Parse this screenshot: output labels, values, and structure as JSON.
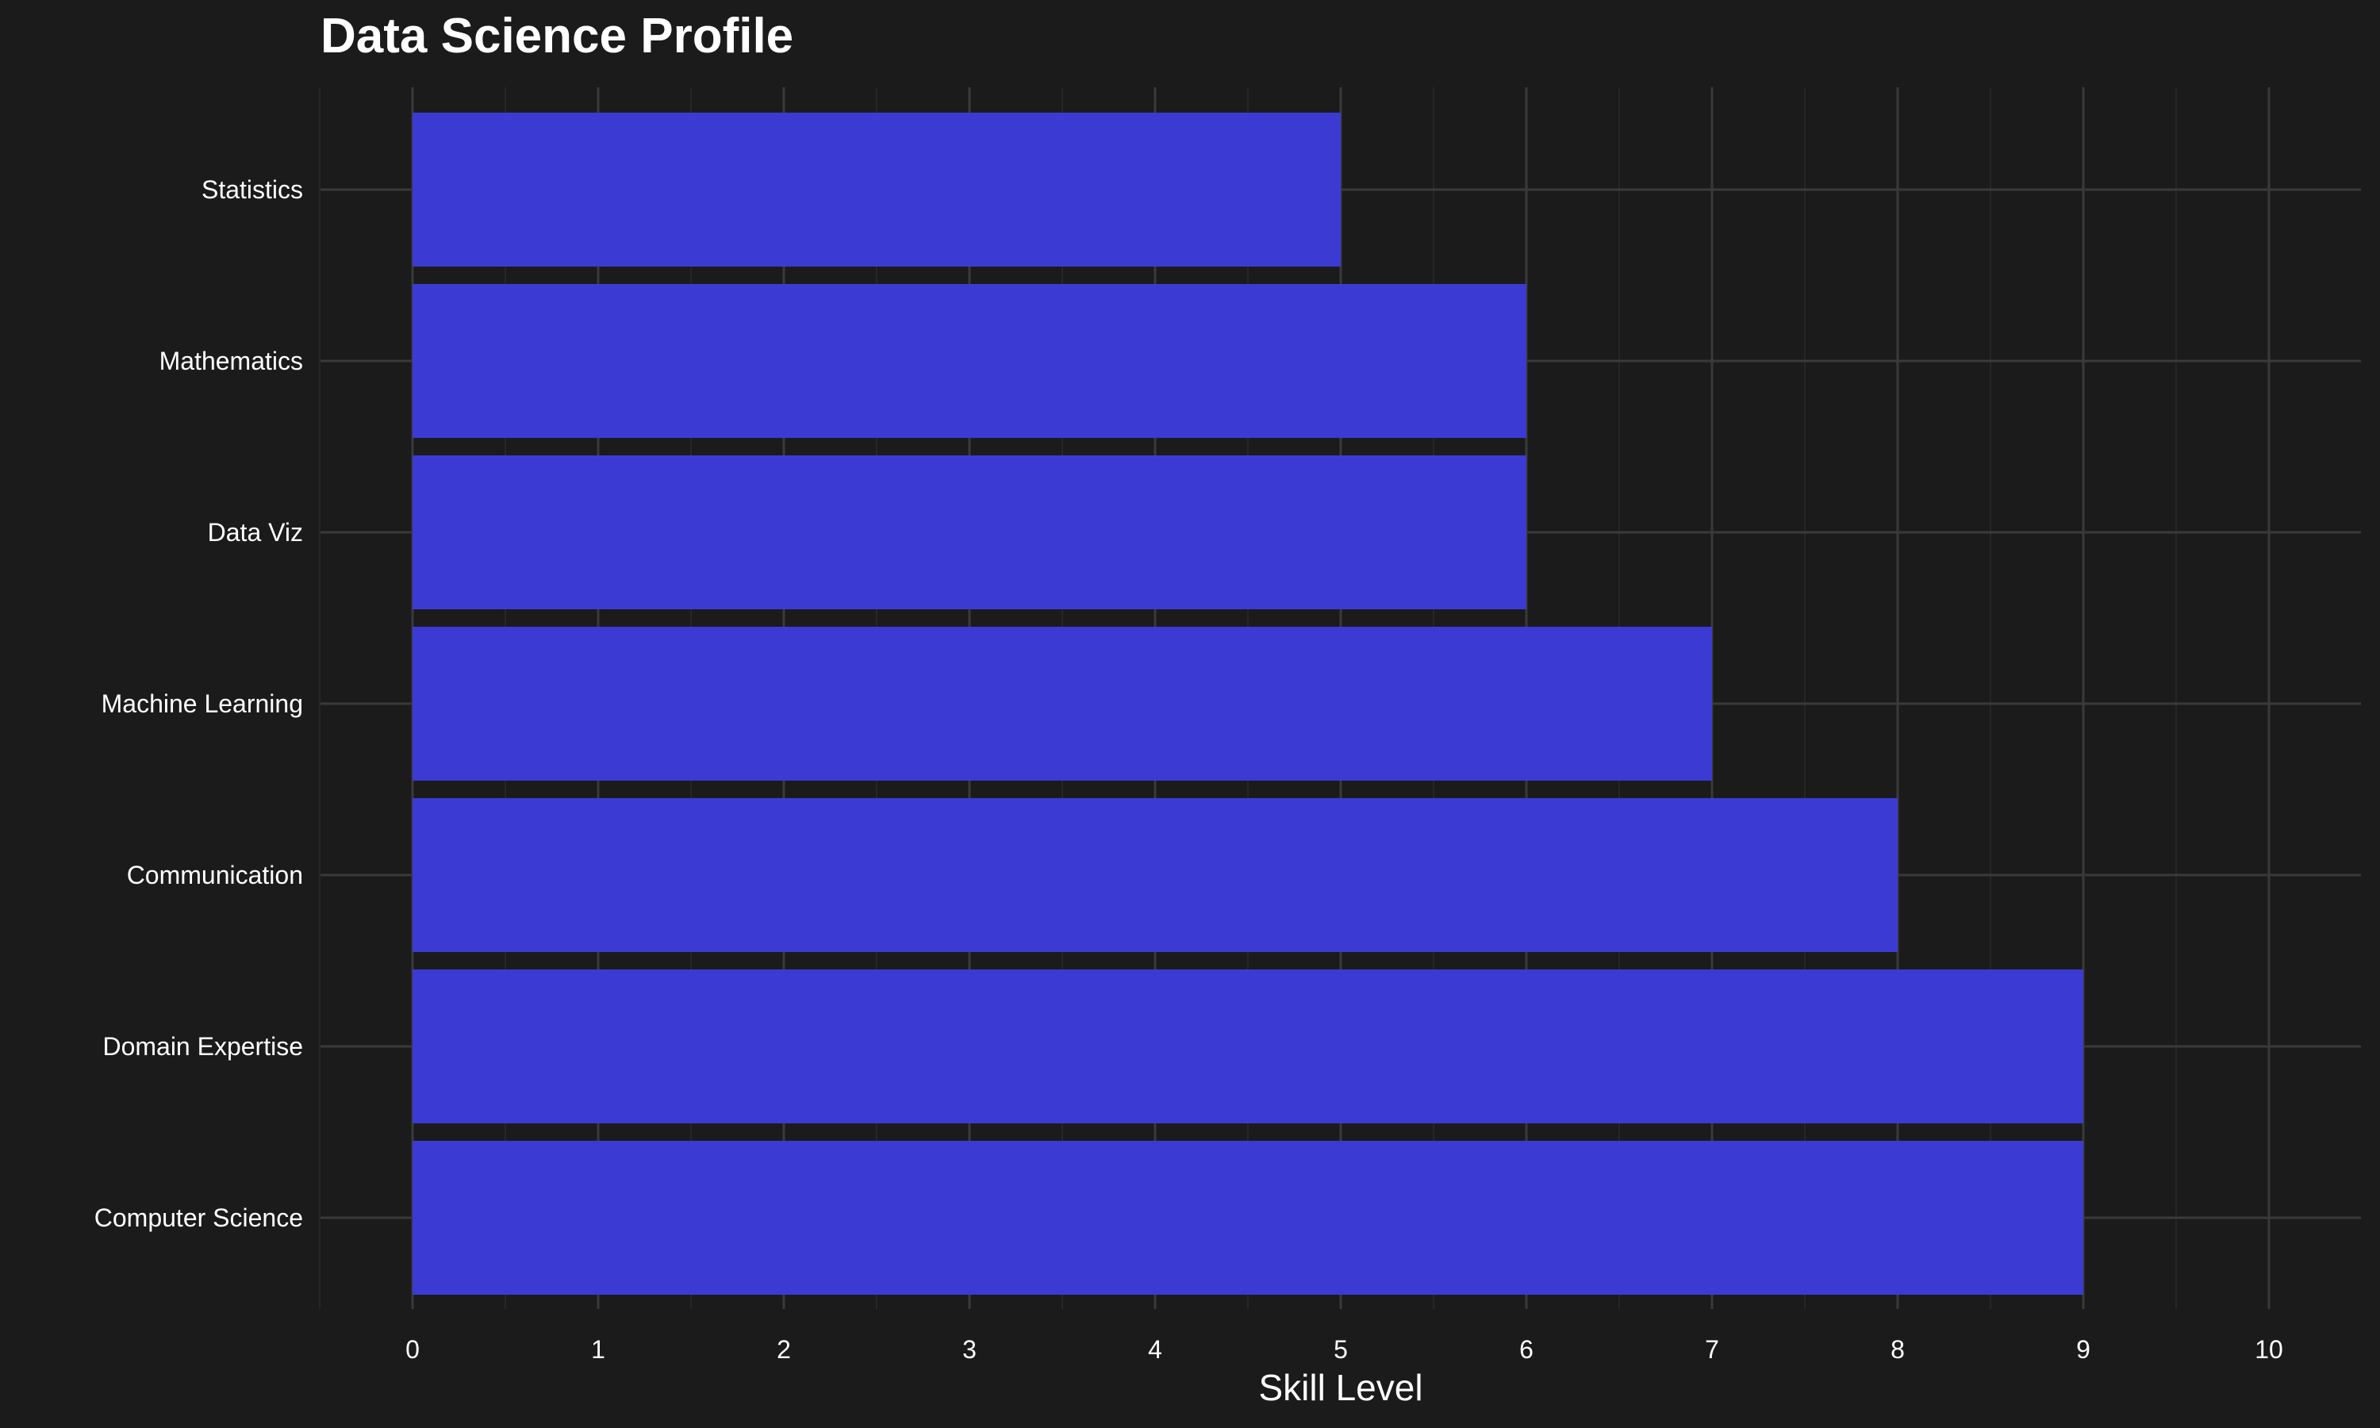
{
  "chart_data": {
    "type": "bar",
    "orientation": "horizontal",
    "title": "Data Science Profile",
    "xlabel": "Skill Level",
    "ylabel": "",
    "categories": [
      "Statistics",
      "Mathematics",
      "Data Viz",
      "Machine Learning",
      "Communication",
      "Domain Expertise",
      "Computer Science"
    ],
    "values": [
      5,
      6,
      6,
      7,
      8,
      9,
      9
    ],
    "xlim": [
      0,
      10
    ],
    "xticks": [
      "0",
      "1",
      "2",
      "3",
      "4",
      "5",
      "6",
      "7",
      "8",
      "9",
      "10"
    ],
    "grid": true,
    "legend": "none",
    "colors": {
      "background": "#1b1b1b",
      "bar": "#3b3bd4",
      "grid_major": "#3a3a3a",
      "grid_minor": "#262626",
      "text": "#ffffff"
    }
  }
}
